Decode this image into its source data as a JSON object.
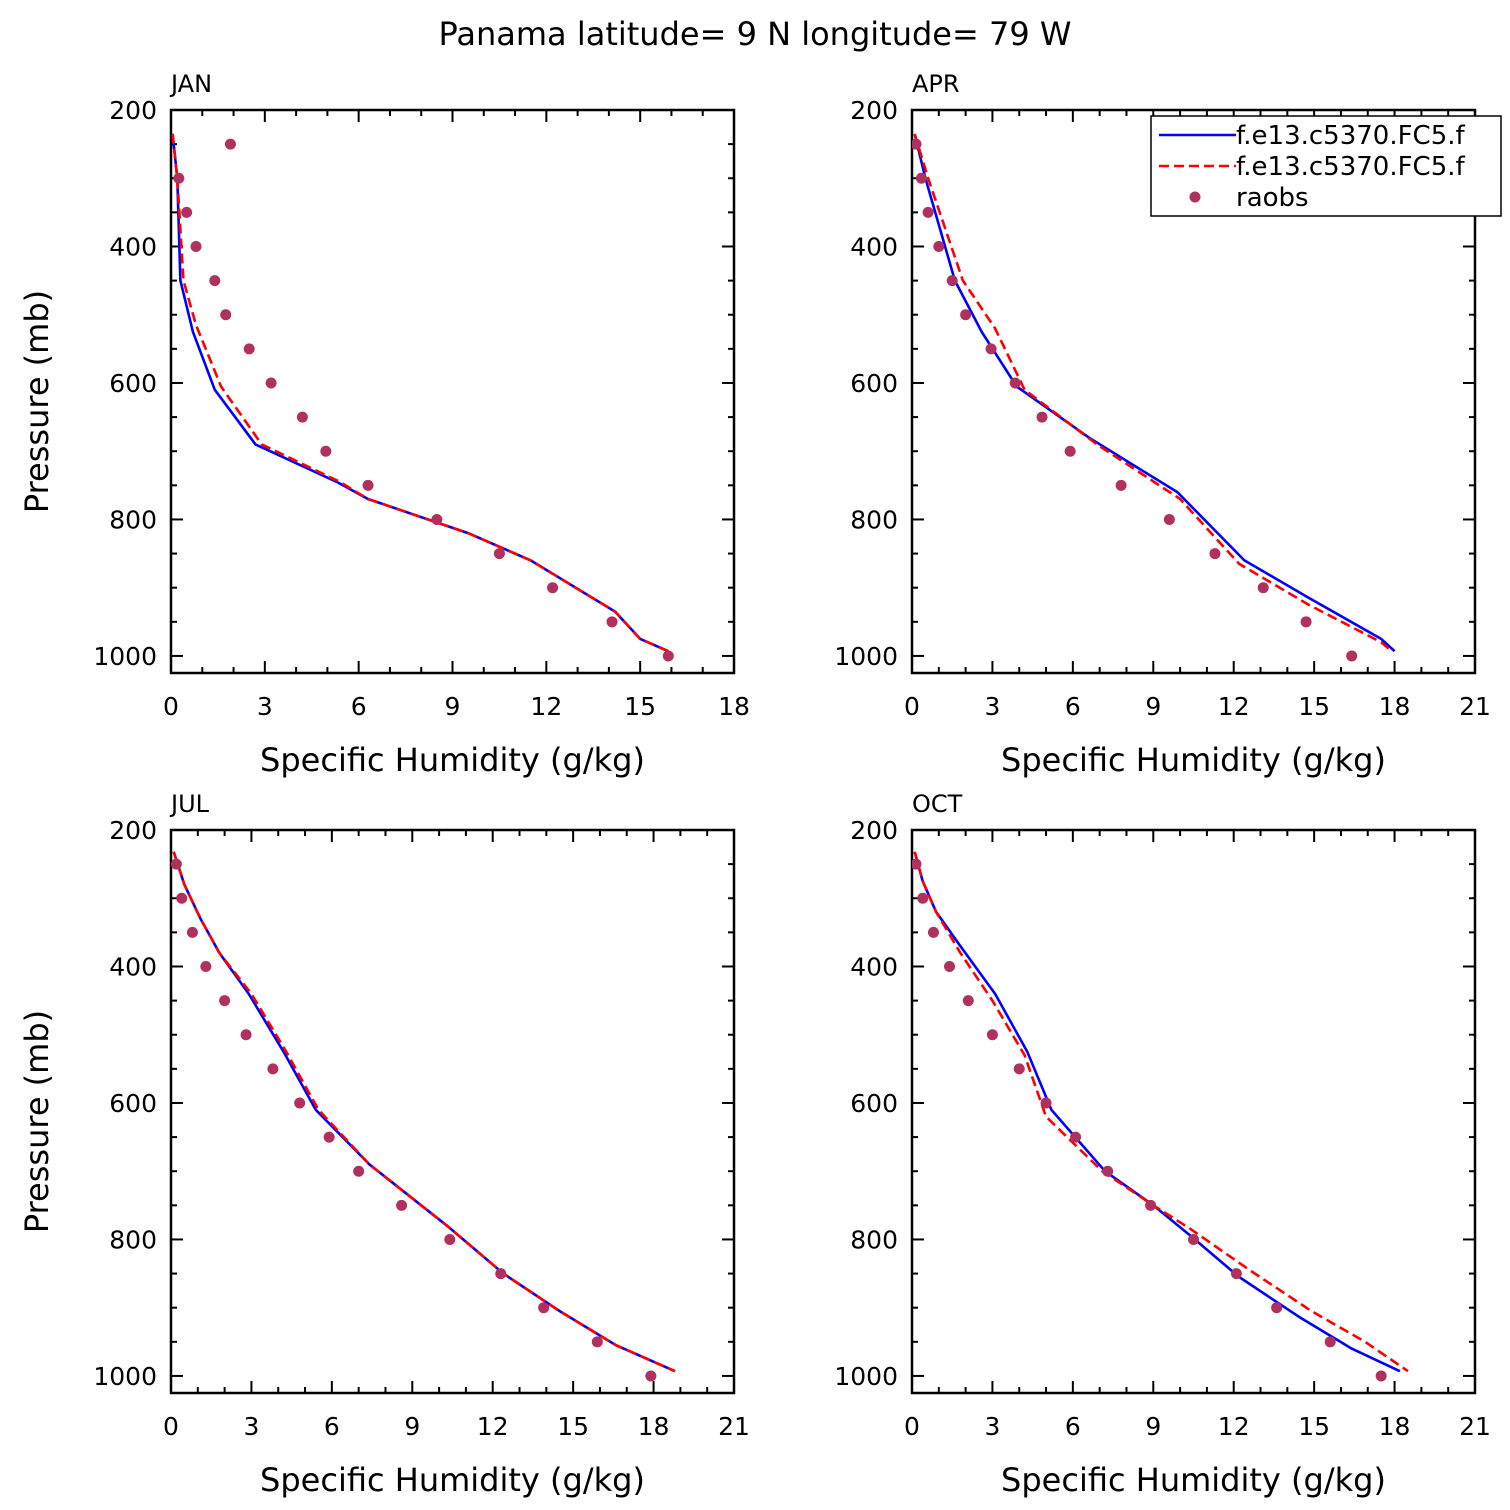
{
  "title": "Panama  latitude= 9 N longitude= 79 W",
  "legend": {
    "entries": [
      {
        "label": "f.e13.c5370.FC5.f",
        "style": "line",
        "color": "#0000ff",
        "dash": false
      },
      {
        "label": "f.e13.c5370.FC5.f",
        "style": "line",
        "color": "#ff0000",
        "dash": true
      },
      {
        "label": "raobs",
        "style": "marker",
        "color": "#b03060"
      }
    ]
  },
  "chart_data": [
    {
      "type": "line",
      "panel": "JAN",
      "xlabel": "Specific Humidity (g/kg)",
      "ylabel": "Pressure (mb)",
      "xlim": [
        0,
        18
      ],
      "xticks": [
        0,
        3,
        6,
        9,
        12,
        15,
        18
      ],
      "xticks_labels": [
        "0",
        "3",
        "6",
        "9",
        "12",
        "15",
        "18"
      ],
      "ylim": [
        200,
        1025
      ],
      "yticks": [
        200,
        400,
        600,
        800,
        1000
      ],
      "yticks_labels": [
        "200",
        "400",
        "600",
        "800",
        "1000"
      ],
      "y_inverted": true,
      "series": [
        {
          "name": "f.e13.c5370.FC5.f",
          "color": "#0000ff",
          "dash": false,
          "x": [
            0.05,
            0.2,
            0.3,
            0.7,
            1.4,
            2.7,
            5.3,
            6.3,
            9.5,
            11.5,
            14.2,
            15.0,
            15.9
          ],
          "y": [
            235,
            300,
            450,
            525,
            610,
            690,
            745,
            770,
            820,
            860,
            935,
            975,
            993
          ]
        },
        {
          "name": "f.e13.c5370.FC5.f",
          "color": "#ff0000",
          "dash": true,
          "x": [
            0.05,
            0.2,
            0.4,
            0.8,
            1.6,
            2.9,
            5.4,
            6.3,
            9.5,
            11.5,
            14.2,
            15.0,
            15.9
          ],
          "y": [
            235,
            300,
            450,
            515,
            605,
            690,
            745,
            770,
            820,
            860,
            935,
            975,
            993
          ]
        },
        {
          "name": "raobs",
          "color": "#b03060",
          "marker": true,
          "x": [
            1.9,
            0.25,
            0.5,
            0.8,
            1.4,
            1.75,
            2.5,
            3.2,
            4.2,
            4.95,
            6.3,
            8.5,
            10.5,
            12.2,
            14.1,
            15.9
          ],
          "y": [
            250,
            300,
            350,
            400,
            450,
            500,
            550,
            600,
            650,
            700,
            750,
            800,
            850,
            900,
            950,
            1000
          ]
        }
      ]
    },
    {
      "type": "line",
      "panel": "APR",
      "xlabel": "Specific Humidity (g/kg)",
      "ylabel": "",
      "xlim": [
        0,
        21
      ],
      "xticks": [
        0,
        3,
        6,
        9,
        12,
        15,
        18,
        21
      ],
      "xticks_labels": [
        "0",
        "3",
        "6",
        "9",
        "12",
        "15",
        "18",
        "21"
      ],
      "ylim": [
        200,
        1025
      ],
      "yticks": [
        200,
        400,
        600,
        800,
        1000
      ],
      "yticks_labels": [
        "200",
        "400",
        "600",
        "800",
        "1000"
      ],
      "y_inverted": true,
      "series": [
        {
          "name": "f.e13.c5370.FC5.f",
          "color": "#0000ff",
          "dash": false,
          "x": [
            0.1,
            0.5,
            1.6,
            2.6,
            3.9,
            6.6,
            9.9,
            12.4,
            14.8,
            17.5,
            18.0
          ],
          "y": [
            235,
            300,
            450,
            525,
            605,
            680,
            760,
            860,
            915,
            975,
            993
          ]
        },
        {
          "name": "f.e13.c5370.FC5.f",
          "color": "#ff0000",
          "dash": true,
          "x": [
            0.1,
            0.6,
            1.9,
            3.1,
            4.2,
            6.9,
            10.0,
            12.2,
            14.8,
            17.5,
            17.9
          ],
          "y": [
            235,
            300,
            450,
            520,
            610,
            690,
            770,
            865,
            925,
            980,
            993
          ]
        },
        {
          "name": "raobs",
          "color": "#b03060",
          "marker": true,
          "x": [
            0.15,
            0.35,
            0.6,
            1.0,
            1.5,
            2.0,
            2.95,
            3.85,
            4.85,
            5.9,
            7.8,
            9.6,
            11.3,
            13.1,
            14.7,
            16.4
          ],
          "y": [
            250,
            300,
            350,
            400,
            450,
            500,
            550,
            600,
            650,
            700,
            750,
            800,
            850,
            900,
            950,
            1000
          ]
        }
      ]
    },
    {
      "type": "line",
      "panel": "JUL",
      "xlabel": "Specific Humidity (g/kg)",
      "ylabel": "Pressure (mb)",
      "xlim": [
        0,
        21
      ],
      "xticks": [
        0,
        3,
        6,
        9,
        12,
        15,
        18,
        21
      ],
      "xticks_labels": [
        "0",
        "3",
        "6",
        "9",
        "12",
        "15",
        "18",
        "21"
      ],
      "ylim": [
        200,
        1025
      ],
      "yticks": [
        200,
        400,
        600,
        800,
        1000
      ],
      "yticks_labels": [
        "200",
        "400",
        "600",
        "800",
        "1000"
      ],
      "y_inverted": true,
      "series": [
        {
          "name": "f.e13.c5370.FC5.f",
          "color": "#0000ff",
          "dash": false,
          "x": [
            0.1,
            0.5,
            1.1,
            1.8,
            2.9,
            4.2,
            5.4,
            7.4,
            10.3,
            12.4,
            14.5,
            16.6,
            18.8
          ],
          "y": [
            232,
            280,
            330,
            380,
            440,
            525,
            610,
            690,
            780,
            850,
            905,
            955,
            993
          ]
        },
        {
          "name": "f.e13.c5370.FC5.f",
          "color": "#ff0000",
          "dash": true,
          "x": [
            0.1,
            0.5,
            1.1,
            1.8,
            3.0,
            4.3,
            5.5,
            7.4,
            10.3,
            12.4,
            14.5,
            16.6,
            18.8
          ],
          "y": [
            232,
            280,
            330,
            380,
            440,
            525,
            610,
            690,
            780,
            850,
            905,
            955,
            993
          ]
        },
        {
          "name": "raobs",
          "color": "#b03060",
          "marker": true,
          "x": [
            0.2,
            0.4,
            0.8,
            1.3,
            2.0,
            2.8,
            3.8,
            4.8,
            5.9,
            7.0,
            8.6,
            10.4,
            12.3,
            13.9,
            15.9,
            17.9
          ],
          "y": [
            250,
            300,
            350,
            400,
            450,
            500,
            550,
            600,
            650,
            700,
            750,
            800,
            850,
            900,
            950,
            1000
          ]
        }
      ]
    },
    {
      "type": "line",
      "panel": "OCT",
      "xlabel": "Specific Humidity (g/kg)",
      "ylabel": "",
      "xlim": [
        0,
        21
      ],
      "xticks": [
        0,
        3,
        6,
        9,
        12,
        15,
        18,
        21
      ],
      "xticks_labels": [
        "0",
        "3",
        "6",
        "9",
        "12",
        "15",
        "18",
        "21"
      ],
      "ylim": [
        200,
        1025
      ],
      "yticks": [
        200,
        400,
        600,
        800,
        1000
      ],
      "yticks_labels": [
        "200",
        "400",
        "600",
        "800",
        "1000"
      ],
      "y_inverted": true,
      "series": [
        {
          "name": "f.e13.c5370.FC5.f",
          "color": "#0000ff",
          "dash": false,
          "x": [
            0.1,
            0.4,
            0.9,
            1.8,
            3.1,
            4.3,
            5.2,
            7.2,
            9.0,
            10.4,
            12.2,
            14.5,
            16.4,
            18.2
          ],
          "y": [
            232,
            275,
            320,
            370,
            440,
            525,
            610,
            700,
            750,
            795,
            855,
            915,
            960,
            993
          ]
        },
        {
          "name": "f.e13.c5370.FC5.f",
          "color": "#ff0000",
          "dash": true,
          "x": [
            0.1,
            0.4,
            0.9,
            1.8,
            3.0,
            4.2,
            5.0,
            7.1,
            9.0,
            10.4,
            12.6,
            14.9,
            16.9,
            18.5
          ],
          "y": [
            232,
            275,
            320,
            380,
            450,
            530,
            620,
            700,
            750,
            785,
            845,
            905,
            950,
            993
          ]
        },
        {
          "name": "raobs",
          "color": "#b03060",
          "marker": true,
          "x": [
            0.15,
            0.4,
            0.8,
            1.4,
            2.1,
            3.0,
            4.0,
            5.0,
            6.1,
            7.3,
            8.9,
            10.5,
            12.1,
            13.6,
            15.6,
            17.5
          ],
          "y": [
            250,
            300,
            350,
            400,
            450,
            500,
            550,
            600,
            650,
            700,
            750,
            800,
            850,
            900,
            950,
            1000
          ]
        }
      ]
    }
  ]
}
